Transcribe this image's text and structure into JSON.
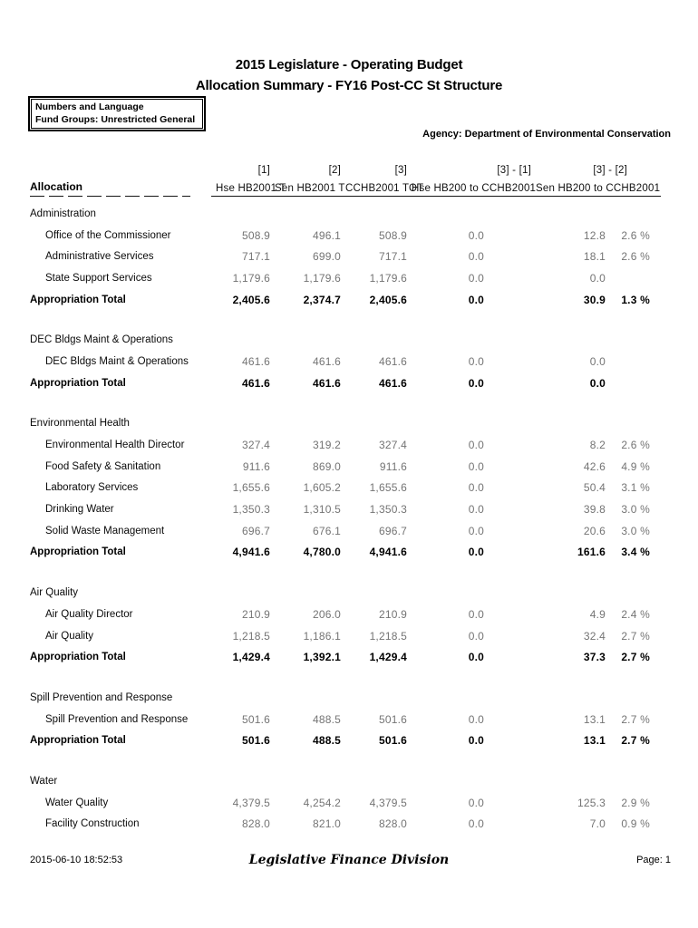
{
  "page": {
    "title_line1": "2015 Legislature - Operating Budget",
    "title_line2": "Allocation Summary - FY16 Post-CC St Structure",
    "info_box": {
      "line1": "Numbers and Language",
      "line2": "Fund Groups: Unrestricted General"
    },
    "agency": "Agency: Department of Environmental Conservation"
  },
  "colors": {
    "value_text": "#747474",
    "total_text": "#000000",
    "rule": "#161616"
  },
  "table": {
    "header": {
      "allocation": "Allocation",
      "columns": [
        {
          "index": "[1]",
          "name": "Hse HB2001 T"
        },
        {
          "index": "[2]",
          "name": "Sen HB2001 T"
        },
        {
          "index": "[3]",
          "name": "CCHB2001 TOT"
        },
        {
          "index": "[3] - [1]",
          "name": "Hse HB200 to CCHB2001"
        },
        {
          "index": "[3] - [2]",
          "name": "Sen HB200 to CCHB2001"
        }
      ]
    },
    "total_label": "Appropriation Total",
    "sections": [
      {
        "name": "Administration",
        "rows": [
          {
            "label": "Office of the Commissioner",
            "values": [
              "508.9",
              "496.1",
              "508.9",
              "0.0",
              "12.8"
            ],
            "pct": "2.6 %"
          },
          {
            "label": "Administrative Services",
            "values": [
              "717.1",
              "699.0",
              "717.1",
              "0.0",
              "18.1"
            ],
            "pct": "2.6 %"
          },
          {
            "label": "State Support Services",
            "values": [
              "1,179.6",
              "1,179.6",
              "1,179.6",
              "0.0",
              "0.0"
            ],
            "pct": ""
          }
        ],
        "total": {
          "values": [
            "2,405.6",
            "2,374.7",
            "2,405.6",
            "0.0",
            "30.9"
          ],
          "pct": "1.3 %"
        }
      },
      {
        "name": "DEC Bldgs Maint & Operations",
        "rows": [
          {
            "label": "DEC Bldgs Maint & Operations",
            "values": [
              "461.6",
              "461.6",
              "461.6",
              "0.0",
              "0.0"
            ],
            "pct": ""
          }
        ],
        "total": {
          "values": [
            "461.6",
            "461.6",
            "461.6",
            "0.0",
            "0.0"
          ],
          "pct": ""
        }
      },
      {
        "name": "Environmental Health",
        "rows": [
          {
            "label": "Environmental Health Director",
            "values": [
              "327.4",
              "319.2",
              "327.4",
              "0.0",
              "8.2"
            ],
            "pct": "2.6 %"
          },
          {
            "label": "Food Safety & Sanitation",
            "values": [
              "911.6",
              "869.0",
              "911.6",
              "0.0",
              "42.6"
            ],
            "pct": "4.9 %"
          },
          {
            "label": "Laboratory Services",
            "values": [
              "1,655.6",
              "1,605.2",
              "1,655.6",
              "0.0",
              "50.4"
            ],
            "pct": "3.1 %"
          },
          {
            "label": "Drinking Water",
            "values": [
              "1,350.3",
              "1,310.5",
              "1,350.3",
              "0.0",
              "39.8"
            ],
            "pct": "3.0 %"
          },
          {
            "label": "Solid Waste Management",
            "values": [
              "696.7",
              "676.1",
              "696.7",
              "0.0",
              "20.6"
            ],
            "pct": "3.0 %"
          }
        ],
        "total": {
          "values": [
            "4,941.6",
            "4,780.0",
            "4,941.6",
            "0.0",
            "161.6"
          ],
          "pct": "3.4 %"
        }
      },
      {
        "name": "Air Quality",
        "rows": [
          {
            "label": "Air Quality Director",
            "values": [
              "210.9",
              "206.0",
              "210.9",
              "0.0",
              "4.9"
            ],
            "pct": "2.4 %"
          },
          {
            "label": "Air Quality",
            "values": [
              "1,218.5",
              "1,186.1",
              "1,218.5",
              "0.0",
              "32.4"
            ],
            "pct": "2.7 %"
          }
        ],
        "total": {
          "values": [
            "1,429.4",
            "1,392.1",
            "1,429.4",
            "0.0",
            "37.3"
          ],
          "pct": "2.7 %"
        }
      },
      {
        "name": "Spill Prevention and Response",
        "rows": [
          {
            "label": "Spill Prevention and Response",
            "values": [
              "501.6",
              "488.5",
              "501.6",
              "0.0",
              "13.1"
            ],
            "pct": "2.7 %"
          }
        ],
        "total": {
          "values": [
            "501.6",
            "488.5",
            "501.6",
            "0.0",
            "13.1"
          ],
          "pct": "2.7 %"
        }
      },
      {
        "name": "Water",
        "rows": [
          {
            "label": "Water Quality",
            "values": [
              "4,379.5",
              "4,254.2",
              "4,379.5",
              "0.0",
              "125.3"
            ],
            "pct": "2.9 %"
          },
          {
            "label": "Facility Construction",
            "values": [
              "828.0",
              "821.0",
              "828.0",
              "0.0",
              "7.0"
            ],
            "pct": "0.9 %"
          }
        ],
        "total": null
      }
    ]
  },
  "footer": {
    "timestamp": "2015-06-10 18:52:53",
    "center": "Legislative Finance Division",
    "page": "Page: 1"
  }
}
